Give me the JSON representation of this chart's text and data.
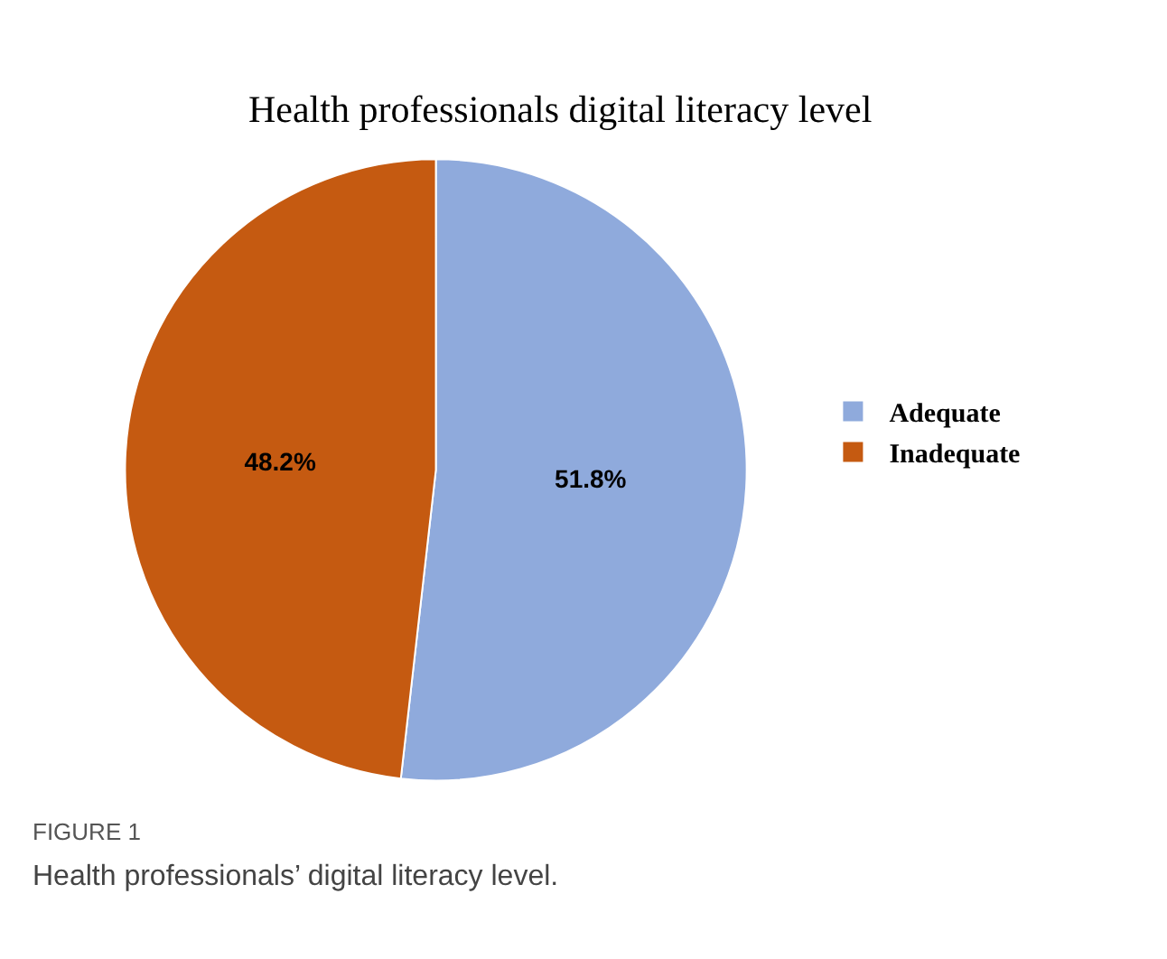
{
  "chart_data": {
    "type": "pie",
    "title": "Health professionals digital literacy level",
    "categories": [
      "Adequate",
      "Inadequate"
    ],
    "values": [
      51.8,
      48.2
    ],
    "value_labels": [
      "51.8%",
      "48.2%"
    ],
    "colors": [
      "#8faadc",
      "#c55a11"
    ],
    "legend": "right",
    "annotations": [
      "FIGURE 1",
      "Health professionals’ digital literacy level."
    ]
  }
}
